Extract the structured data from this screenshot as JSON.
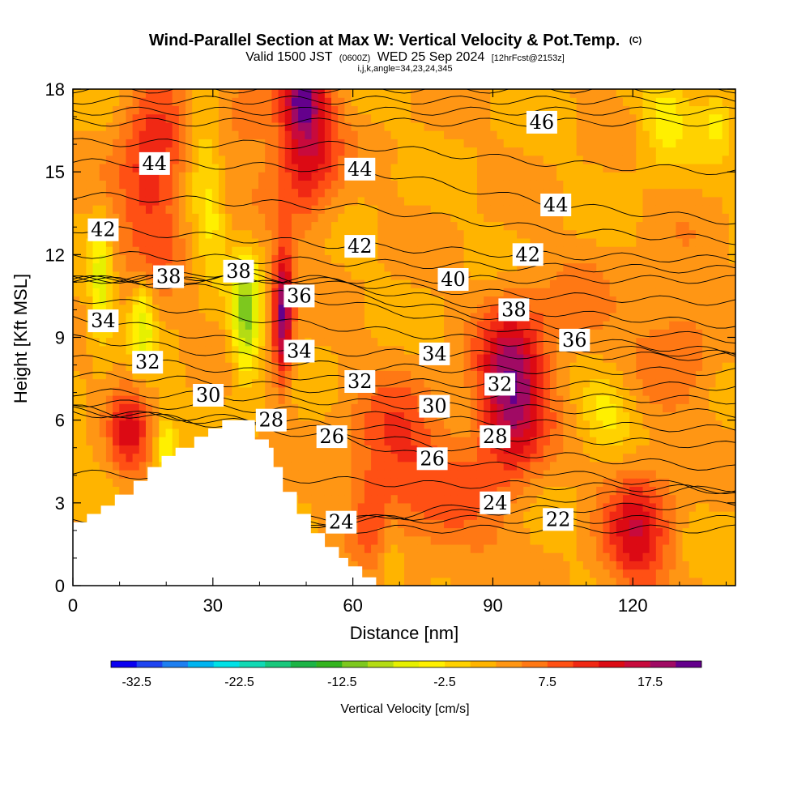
{
  "title": {
    "main": "Wind-Parallel Section at Max W: Vertical Velocity & Pot.Temp.",
    "copyright": "(C)",
    "line2_valid": "Valid 1500 JST",
    "line2_utc": "(0600Z)",
    "line2_date": "WED 25 Sep 2024",
    "line2_fcst": "[12hrFcst@2153z]",
    "line3": "i,j,k,angle=34,23,24,345"
  },
  "chart_data": {
    "type": "heatmap",
    "xlabel": "Distance [nm]",
    "ylabel": "Height [Kft MSL]",
    "xlim": [
      0,
      142
    ],
    "ylim": [
      0,
      18
    ],
    "xticks": [
      0,
      30,
      60,
      90,
      120
    ],
    "yticks": [
      0,
      3,
      6,
      9,
      12,
      15,
      18
    ],
    "colorbar": {
      "title": "Vertical Velocity [cm/s]",
      "tick_labels": [
        "-32.5",
        "-22.5",
        "-12.5",
        "-2.5",
        "7.5",
        "17.5"
      ],
      "tick_values": [
        -32.5,
        -22.5,
        -12.5,
        -2.5,
        7.5,
        17.5
      ],
      "min": -35,
      "max": 20,
      "step": 2.5,
      "colors": [
        "#0a00f0",
        "#1f44f0",
        "#1e7ff0",
        "#00b4f0",
        "#00e1e6",
        "#11d9b4",
        "#18c87c",
        "#1cb446",
        "#33b41e",
        "#7dc81e",
        "#b4dc14",
        "#e6f000",
        "#fff000",
        "#ffd200",
        "#ffb400",
        "#ff9614",
        "#ff7814",
        "#ff5014",
        "#f02814",
        "#dc0a14",
        "#c80a3c",
        "#a00a64",
        "#64008c"
      ]
    },
    "contour_labels": [
      {
        "text": "46",
        "x": 100.5,
        "y": 16.8
      },
      {
        "text": "44",
        "x": 17.5,
        "y": 15.3
      },
      {
        "text": "44",
        "x": 61.5,
        "y": 15.1
      },
      {
        "text": "44",
        "x": 103.5,
        "y": 13.8
      },
      {
        "text": "42",
        "x": 6.5,
        "y": 12.9
      },
      {
        "text": "42",
        "x": 61.5,
        "y": 12.3
      },
      {
        "text": "42",
        "x": 97.5,
        "y": 12.0
      },
      {
        "text": "38",
        "x": 20.5,
        "y": 11.2
      },
      {
        "text": "38",
        "x": 35.5,
        "y": 11.4
      },
      {
        "text": "40",
        "x": 81.5,
        "y": 11.1
      },
      {
        "text": "36",
        "x": 48.5,
        "y": 10.5
      },
      {
        "text": "38",
        "x": 94.5,
        "y": 10.0
      },
      {
        "text": "34",
        "x": 6.5,
        "y": 9.6
      },
      {
        "text": "36",
        "x": 107.5,
        "y": 8.9
      },
      {
        "text": "34",
        "x": 48.5,
        "y": 8.5
      },
      {
        "text": "34",
        "x": 77.5,
        "y": 8.4
      },
      {
        "text": "32",
        "x": 16.0,
        "y": 8.1
      },
      {
        "text": "32",
        "x": 61.5,
        "y": 7.4
      },
      {
        "text": "32",
        "x": 91.5,
        "y": 7.3
      },
      {
        "text": "30",
        "x": 29.0,
        "y": 6.9
      },
      {
        "text": "30",
        "x": 77.5,
        "y": 6.5
      },
      {
        "text": "28",
        "x": 42.5,
        "y": 6.0
      },
      {
        "text": "28",
        "x": 90.5,
        "y": 5.4
      },
      {
        "text": "26",
        "x": 55.5,
        "y": 5.4
      },
      {
        "text": "26",
        "x": 77.0,
        "y": 4.6
      },
      {
        "text": "24",
        "x": 57.5,
        "y": 2.3
      },
      {
        "text": "24",
        "x": 90.5,
        "y": 3.0
      },
      {
        "text": "22",
        "x": 104.0,
        "y": 2.4
      }
    ],
    "velocity_centers": [
      {
        "x": 17,
        "y": 15,
        "sx": 5,
        "sy": 2.5,
        "w": 10
      },
      {
        "x": 50,
        "y": 16.5,
        "sx": 4.5,
        "sy": 2.2,
        "w": 14
      },
      {
        "x": 49,
        "y": 17.6,
        "sx": 2,
        "sy": 0.7,
        "w": 8
      },
      {
        "x": 45,
        "y": 9.8,
        "sx": 1.5,
        "sy": 1.7,
        "w": 18
      },
      {
        "x": 94,
        "y": 7.0,
        "sx": 5,
        "sy": 2.0,
        "w": 18
      },
      {
        "x": 121,
        "y": 2.0,
        "sx": 5,
        "sy": 1.7,
        "w": 11
      },
      {
        "x": 69,
        "y": 4.8,
        "sx": 7,
        "sy": 1.8,
        "w": 8
      },
      {
        "x": 12,
        "y": 5.5,
        "sx": 3,
        "sy": 1.2,
        "w": 10
      },
      {
        "x": 38,
        "y": 17,
        "sx": 5,
        "sy": 1.5,
        "w": 4
      },
      {
        "x": 65,
        "y": 2.5,
        "sx": 3,
        "sy": 1.2,
        "w": 5
      },
      {
        "x": 82,
        "y": 2.5,
        "sx": 7,
        "sy": 1.8,
        "w": 4
      },
      {
        "x": 107,
        "y": 9.5,
        "sx": 8,
        "sy": 1.5,
        "w": 3
      },
      {
        "x": 130,
        "y": 9.0,
        "sx": 6,
        "sy": 2.0,
        "w": 4
      },
      {
        "x": 37,
        "y": 9.7,
        "sx": 2.2,
        "sy": 1.6,
        "w": -13
      },
      {
        "x": 28,
        "y": 16,
        "sx": 2.5,
        "sy": 2.5,
        "w": -5
      },
      {
        "x": 6,
        "y": 11,
        "sx": 1.6,
        "sy": 1.5,
        "w": -9
      },
      {
        "x": 15,
        "y": 9.5,
        "sx": 1.8,
        "sy": 1.2,
        "w": -9
      },
      {
        "x": 20,
        "y": 5.0,
        "sx": 1.5,
        "sy": 0.8,
        "w": -8
      },
      {
        "x": 127,
        "y": 17,
        "sx": 4,
        "sy": 1.2,
        "w": -6
      },
      {
        "x": 138,
        "y": 17,
        "sx": 2.5,
        "sy": 1.0,
        "w": -5
      },
      {
        "x": 114,
        "y": 6.3,
        "sx": 4,
        "sy": 1.0,
        "w": -6
      },
      {
        "x": 30,
        "y": 13,
        "sx": 2,
        "sy": 1.2,
        "w": -4
      },
      {
        "x": 68,
        "y": 1.5,
        "sx": 2,
        "sy": 1.2,
        "w": -5
      }
    ],
    "terrain": [
      [
        0,
        2.3
      ],
      [
        3,
        2.3
      ],
      [
        3,
        2.6
      ],
      [
        6,
        2.6
      ],
      [
        6,
        2.9
      ],
      [
        9,
        2.9
      ],
      [
        9,
        3.3
      ],
      [
        13,
        3.3
      ],
      [
        13,
        3.8
      ],
      [
        16,
        3.8
      ],
      [
        16,
        4.3
      ],
      [
        19,
        4.3
      ],
      [
        19,
        4.7
      ],
      [
        22,
        4.7
      ],
      [
        22,
        5.0
      ],
      [
        26,
        5.0
      ],
      [
        26,
        5.4
      ],
      [
        29,
        5.4
      ],
      [
        29,
        5.7
      ],
      [
        32,
        5.7
      ],
      [
        32,
        6.0
      ],
      [
        39,
        6.0
      ],
      [
        39,
        5.3
      ],
      [
        42,
        5.3
      ],
      [
        42,
        5.0
      ],
      [
        43,
        5.0
      ],
      [
        43,
        4.3
      ],
      [
        45,
        4.3
      ],
      [
        45,
        3.4
      ],
      [
        48,
        3.4
      ],
      [
        48,
        2.6
      ],
      [
        51,
        2.6
      ],
      [
        51,
        1.9
      ],
      [
        54,
        1.9
      ],
      [
        54,
        1.4
      ],
      [
        57,
        1.4
      ],
      [
        57,
        1.0
      ],
      [
        59,
        1.0
      ],
      [
        59,
        0.7
      ],
      [
        62,
        0.7
      ],
      [
        62,
        0.3
      ],
      [
        65,
        0.3
      ],
      [
        65,
        0.0
      ],
      [
        0,
        0.0
      ]
    ]
  }
}
